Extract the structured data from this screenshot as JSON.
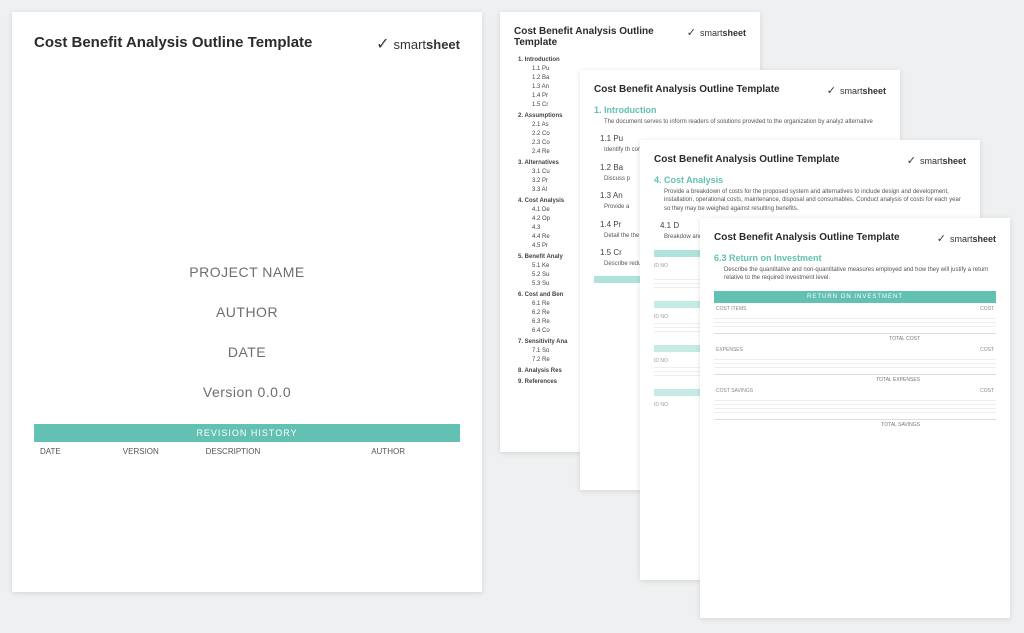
{
  "brand": {
    "part1": "smart",
    "part2": "sheet"
  },
  "title": "Cost Benefit Analysis Outline Template",
  "colors": {
    "accent": "#62c1b2",
    "bg": "#eef0f1",
    "text_muted": "#6e6e6e"
  },
  "cover": {
    "project": "PROJECT NAME",
    "author": "AUTHOR",
    "date": "DATE",
    "version": "Version 0.0.0",
    "revision_bar": "REVISION HISTORY",
    "revision_cols": [
      "DATE",
      "VERSION",
      "DESCRIPTION",
      "AUTHOR"
    ]
  },
  "outline": [
    {
      "n": "1.",
      "t": "Introduction",
      "c": [
        {
          "n": "1.1",
          "t": "Pu"
        },
        {
          "n": "1.2",
          "t": "Ba"
        },
        {
          "n": "1.3",
          "t": "An"
        },
        {
          "n": "1.4",
          "t": "Pr"
        },
        {
          "n": "1.5",
          "t": "Cr"
        }
      ]
    },
    {
      "n": "2.",
      "t": "Assumptions",
      "c": [
        {
          "n": "2.1",
          "t": "As"
        },
        {
          "n": "2.2",
          "t": "Co"
        },
        {
          "n": "2.3",
          "t": "Co"
        },
        {
          "n": "2.4",
          "t": "Re"
        }
      ]
    },
    {
      "n": "3.",
      "t": "Alternatives",
      "c": [
        {
          "n": "3.1",
          "t": "Cu"
        },
        {
          "n": "3.2",
          "t": "Pr"
        },
        {
          "n": "3.3",
          "t": "Al"
        }
      ]
    },
    {
      "n": "4.",
      "t": "Cost Analysis",
      "c": [
        {
          "n": "4.1",
          "t": "De"
        },
        {
          "n": "4.2",
          "t": "Op"
        },
        {
          "n": "4.3",
          "t": ""
        },
        {
          "n": "4.4",
          "t": "Re"
        },
        {
          "n": "4.5",
          "t": "Pr"
        }
      ]
    },
    {
      "n": "5.",
      "t": "Benefit Analy",
      "c": [
        {
          "n": "5.1",
          "t": "Ke"
        },
        {
          "n": "5.2",
          "t": "Su"
        },
        {
          "n": "5.3",
          "t": "Su"
        }
      ]
    },
    {
      "n": "6.",
      "t": "Cost and Ben",
      "c": [
        {
          "n": "6.1",
          "t": "Re"
        },
        {
          "n": "6.2",
          "t": "Re"
        },
        {
          "n": "6.3",
          "t": "Re"
        },
        {
          "n": "6.4",
          "t": "Co"
        }
      ]
    },
    {
      "n": "7.",
      "t": "Sensitivity Ana",
      "c": [
        {
          "n": "7.1",
          "t": "So"
        },
        {
          "n": "7.2",
          "t": "Re"
        }
      ]
    },
    {
      "n": "8.",
      "t": "Analysis Res",
      "c": []
    },
    {
      "n": "9.",
      "t": "References",
      "c": []
    }
  ],
  "page3": {
    "sec1": "1.  Introduction",
    "sec1_body": "The document serves to inform readers of solutions provided to the organization by analyz  alternative",
    "s11": "1.1  Pu",
    "s11_body": "Identify th  competitiv  missions",
    "s12": "1.2  Ba",
    "s12_body": "Discuss p",
    "s13": "1.3  An",
    "s13_body": "Provide a",
    "s14": "1.4  Pr",
    "s14_body": "Detail the  the projec  – provide",
    "s15": "1.5  Cr",
    "s15_body": "Describe  reduced"
  },
  "page4": {
    "sec4": "4.  Cost Analysis",
    "sec4_body": "Provide a breakdown of costs for the proposed system and alternatives to include design and development, installation, operational costs, maintenance, disposal and consumables. Conduct analysis of costs for each year so they may be weighed against resulting benefits.",
    "s41": "4.1  D",
    "s41_body": "Breakdow  and softw  in an outl",
    "id_label": "ID NO"
  },
  "page5": {
    "sec63": "6.3  Return on Investment",
    "sec63_body": "Describe the quantitative and non-quantitative measures employed and how they will justify a return relative to the required investment level.",
    "roi_bar": "RETURN ON INVESTMENT",
    "cost_items": "COST ITEMS",
    "cost": "COST",
    "total_cost": "TOTAL COST",
    "expenses": "EXPENSES",
    "total_expenses": "TOTAL EXPENSES",
    "cost_savings": "COST SAVINGS",
    "total_savings": "TOTAL SAVINGS"
  }
}
